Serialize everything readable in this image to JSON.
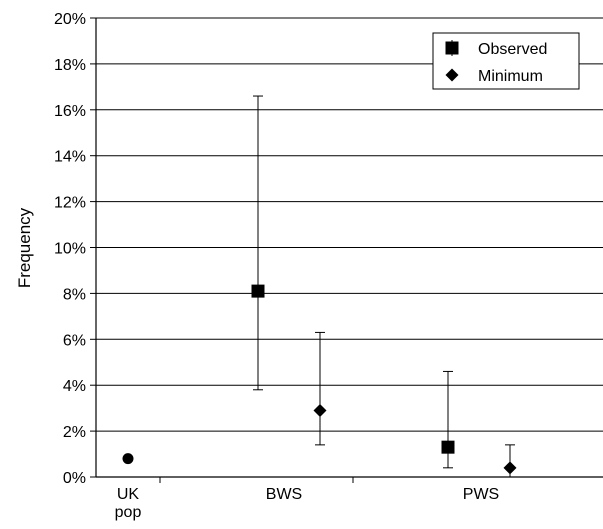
{
  "chart_data": {
    "type": "scatter",
    "title": "",
    "xlabel": "",
    "ylabel": "Frequency",
    "y_unit": "%",
    "ylim": [
      0,
      20
    ],
    "y_ticks": [
      0,
      2,
      4,
      6,
      8,
      10,
      12,
      14,
      16,
      18,
      20
    ],
    "y_tick_labels": [
      "0%",
      "2%",
      "4%",
      "6%",
      "8%",
      "10%",
      "12%",
      "14%",
      "16%",
      "18%",
      "20%"
    ],
    "categories": [
      "UK pop",
      "BWS",
      "PWS"
    ],
    "category_label_lines": [
      [
        "UK",
        "pop"
      ],
      [
        "BWS"
      ],
      [
        "PWS"
      ]
    ],
    "grid": true,
    "legend_position": "top-right",
    "series": [
      {
        "name": "Observed",
        "marker": "square",
        "points": [
          {
            "category": "UK pop",
            "y": 0.8
          },
          {
            "category": "BWS",
            "y": 8.1,
            "err_low": 3.8,
            "err_high": 16.6
          },
          {
            "category": "PWS",
            "y": 1.3,
            "err_low": 0.4,
            "err_high": 4.6
          }
        ]
      },
      {
        "name": "Minimum",
        "marker": "diamond",
        "points": [
          {
            "category": "BWS",
            "y": 2.9,
            "err_low": 1.4,
            "err_high": 6.3
          },
          {
            "category": "PWS",
            "y": 0.4,
            "err_low": 0.0,
            "err_high": 1.4
          }
        ]
      }
    ]
  }
}
